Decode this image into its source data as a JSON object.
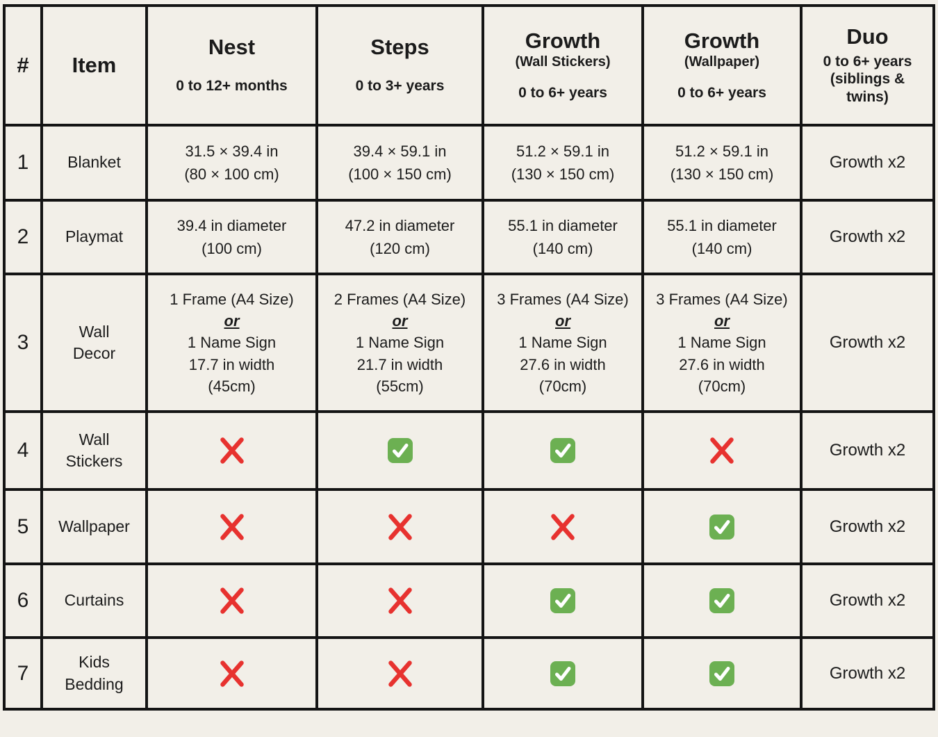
{
  "theme": {
    "background": "#f2efe8",
    "border_black": "#141414",
    "text_black": "#1b1b1b",
    "cross_red": "#e7322f",
    "check_green": "#6cb052",
    "check_mark_white": "#ffffff"
  },
  "table": {
    "columns": [
      {
        "key": "num",
        "title": "#"
      },
      {
        "key": "item",
        "title": "Item"
      },
      {
        "key": "nest",
        "title": "Nest",
        "subtitle": "0 to 12+ months"
      },
      {
        "key": "steps",
        "title": "Steps",
        "subtitle": "0 to 3+ years"
      },
      {
        "key": "growth-wall-stickers",
        "title": "Growth",
        "paren": "(Wall Stickers)",
        "subtitle": "0 to 6+ years"
      },
      {
        "key": "growth-wallpaper",
        "title": "Growth",
        "paren": "(Wallpaper)",
        "subtitle": "0 to 6+ years"
      },
      {
        "key": "duo",
        "title": "Duo",
        "subtitle": "0 to 6+ years (siblings & twins)"
      }
    ],
    "rows": [
      {
        "num": "1",
        "item": "Blanket",
        "cells": [
          {
            "type": "text",
            "lines": [
              "31.5 × 39.4 in",
              "(80 × 100 cm)"
            ]
          },
          {
            "type": "text",
            "lines": [
              "39.4 × 59.1 in",
              "(100 × 150 cm)"
            ]
          },
          {
            "type": "text",
            "lines": [
              "51.2 × 59.1 in",
              "(130 × 150 cm)"
            ]
          },
          {
            "type": "text",
            "lines": [
              "51.2 × 59.1 in",
              "(130 × 150 cm)"
            ]
          },
          {
            "type": "text",
            "variant": "duo",
            "lines": [
              "Growth x2"
            ]
          }
        ]
      },
      {
        "num": "2",
        "item": "Playmat",
        "cells": [
          {
            "type": "text",
            "lines": [
              "39.4 in diameter",
              "(100 cm)"
            ]
          },
          {
            "type": "text",
            "lines": [
              "47.2 in diameter",
              "(120 cm)"
            ]
          },
          {
            "type": "text",
            "lines": [
              "55.1 in diameter",
              "(140 cm)"
            ]
          },
          {
            "type": "text",
            "lines": [
              "55.1 in diameter",
              "(140 cm)"
            ]
          },
          {
            "type": "text",
            "variant": "duo",
            "lines": [
              "Growth x2"
            ]
          }
        ]
      },
      {
        "num": "3",
        "item": "Wall\nDecor",
        "cells": [
          {
            "type": "text",
            "dense": true,
            "lines": [
              "1 Frame (A4 Size)",
              "or",
              "1 Name Sign",
              "17.7 in width",
              "(45cm)"
            ]
          },
          {
            "type": "text",
            "dense": true,
            "lines": [
              "2 Frames (A4 Size)",
              "or",
              "1 Name Sign",
              "21.7 in width",
              "(55cm)"
            ]
          },
          {
            "type": "text",
            "dense": true,
            "lines": [
              "3 Frames (A4 Size)",
              "or",
              "1 Name Sign",
              "27.6 in width",
              "(70cm)"
            ]
          },
          {
            "type": "text",
            "dense": true,
            "lines": [
              "3 Frames (A4 Size)",
              "or",
              "1 Name Sign",
              "27.6 in width",
              "(70cm)"
            ]
          },
          {
            "type": "text",
            "variant": "duo",
            "lines": [
              "Growth x2"
            ]
          }
        ]
      },
      {
        "num": "4",
        "item": "Wall\nStickers",
        "cells": [
          {
            "type": "icon",
            "icon": "cross-icon"
          },
          {
            "type": "icon",
            "icon": "check-icon"
          },
          {
            "type": "icon",
            "icon": "check-icon"
          },
          {
            "type": "icon",
            "icon": "cross-icon"
          },
          {
            "type": "text",
            "variant": "duo",
            "lines": [
              "Growth x2"
            ]
          }
        ]
      },
      {
        "num": "5",
        "item": "Wallpaper",
        "cells": [
          {
            "type": "icon",
            "icon": "cross-icon"
          },
          {
            "type": "icon",
            "icon": "cross-icon"
          },
          {
            "type": "icon",
            "icon": "cross-icon"
          },
          {
            "type": "icon",
            "icon": "check-icon"
          },
          {
            "type": "text",
            "variant": "duo",
            "lines": [
              "Growth x2"
            ]
          }
        ]
      },
      {
        "num": "6",
        "item": "Curtains",
        "cells": [
          {
            "type": "icon",
            "icon": "cross-icon"
          },
          {
            "type": "icon",
            "icon": "cross-icon"
          },
          {
            "type": "icon",
            "icon": "check-icon"
          },
          {
            "type": "icon",
            "icon": "check-icon"
          },
          {
            "type": "text",
            "variant": "duo",
            "lines": [
              "Growth x2"
            ]
          }
        ]
      },
      {
        "num": "7",
        "item": "Kids\nBedding",
        "cells": [
          {
            "type": "icon",
            "icon": "cross-icon"
          },
          {
            "type": "icon",
            "icon": "cross-icon"
          },
          {
            "type": "icon",
            "icon": "check-icon"
          },
          {
            "type": "icon",
            "icon": "check-icon"
          },
          {
            "type": "text",
            "variant": "duo",
            "lines": [
              "Growth x2"
            ]
          }
        ]
      }
    ]
  }
}
